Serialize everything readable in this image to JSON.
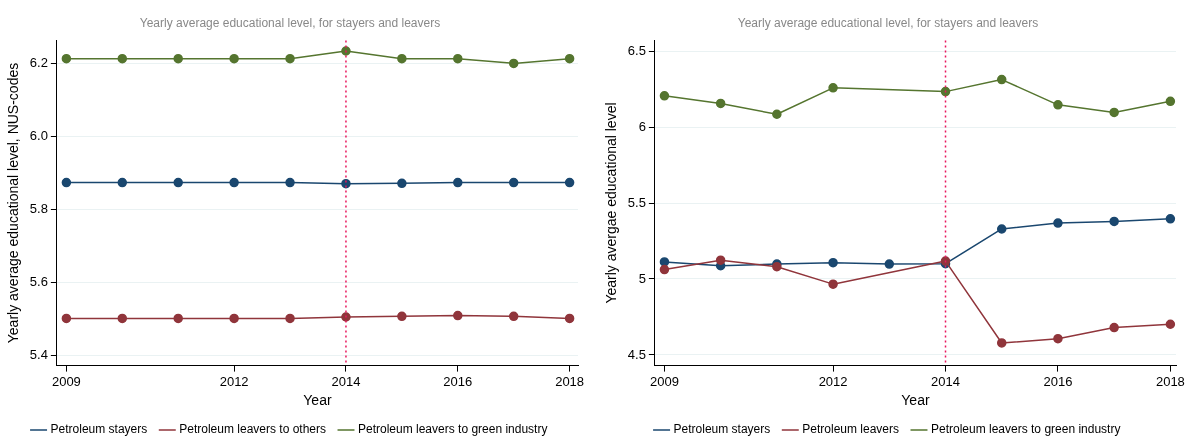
{
  "chart_data": [
    {
      "type": "line",
      "title": "Yearly average educational level, for stayers and leavers",
      "xlabel": "Year",
      "ylabel": "Yearly average educational level, NUS-codes",
      "x": [
        2009,
        2010,
        2011,
        2012,
        2013,
        2014,
        2015,
        2016,
        2017,
        2018
      ],
      "xlim": [
        2008.83,
        2018.15
      ],
      "xticks": [
        2009,
        2012,
        2014,
        2016,
        2018
      ],
      "ylim": [
        5.372,
        6.262
      ],
      "yticks": [
        {
          "value": 5.4,
          "label": "5.4"
        },
        {
          "value": 5.6,
          "label": "5.6"
        },
        {
          "value": 5.8,
          "label": "5.8"
        },
        {
          "value": 6.0,
          "label": "6.0"
        },
        {
          "value": 6.2,
          "label": "6.2"
        }
      ],
      "grid": "y",
      "legend": "bottom",
      "marker": "circle",
      "line_style": "solid",
      "series": [
        {
          "name": "Petroleum stayers",
          "color": "#1a476f",
          "values": [
            5.873,
            5.873,
            5.873,
            5.873,
            5.873,
            5.87,
            5.871,
            5.873,
            5.873,
            5.873
          ]
        },
        {
          "name": "Petroleum leavers to others",
          "color": "#90353b",
          "values": [
            5.501,
            5.501,
            5.501,
            5.501,
            5.501,
            5.505,
            5.507,
            5.509,
            5.507,
            5.501
          ]
        },
        {
          "name": "Petroleum leavers to green industry",
          "color": "#55752f",
          "values": [
            6.212,
            6.212,
            6.212,
            6.212,
            6.212,
            6.233,
            6.212,
            6.212,
            6.199,
            6.212
          ]
        }
      ],
      "ref_lines": [
        {
          "axis": "x",
          "value": 2014,
          "color": "#e8175d",
          "line_style": "dotted"
        }
      ]
    },
    {
      "type": "line",
      "title": "Yearly average educational level, for stayers and leavers",
      "xlabel": "Year",
      "ylabel": "Yearly avergae educational level",
      "x": [
        2009,
        2010,
        2011,
        2012,
        2013,
        2014,
        2015,
        2016,
        2017,
        2018
      ],
      "xlim": [
        2008.83,
        2018.1
      ],
      "xticks": [
        2009,
        2012,
        2014,
        2016,
        2018
      ],
      "ylim": [
        4.43,
        6.57
      ],
      "yticks": [
        4.5,
        5,
        5.5,
        6,
        6.5
      ],
      "grid": "y",
      "legend": "bottom",
      "marker": "circle",
      "line_style": "solid",
      "series": [
        {
          "name": "Petroleum stayers",
          "color": "#1a476f",
          "values": [
            5.112,
            5.087,
            5.098,
            5.107,
            5.098,
            5.101,
            5.329,
            5.368,
            5.379,
            5.396
          ]
        },
        {
          "name": "Petroleum leavers",
          "color": "#90353b",
          "values": [
            5.062,
            5.124,
            5.081,
            4.966,
            null,
            5.118,
            4.579,
            4.607,
            4.68,
            4.702
          ]
        },
        {
          "name": "Petroleum leavers to green industry",
          "color": "#55752f",
          "values": [
            6.205,
            6.155,
            6.084,
            6.258,
            null,
            6.233,
            6.312,
            6.146,
            6.096,
            6.169
          ]
        }
      ],
      "ref_lines": [
        {
          "axis": "x",
          "value": 2014,
          "color": "#e8175d",
          "line_style": "dotted"
        }
      ]
    }
  ]
}
